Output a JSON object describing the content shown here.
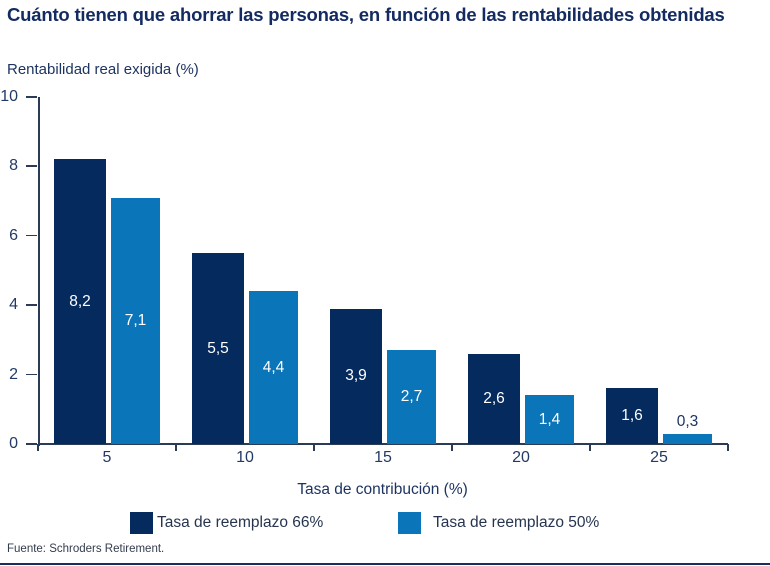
{
  "title": "Cuánto tienen que ahorrar las personas, en función de las rentabilidades obtenidas",
  "chart_data": {
    "type": "bar",
    "title": "Cuánto tienen que ahorrar las personas, en función de las rentabilidades obtenidas",
    "ylabel": "Rentabilidad real exigida (%)",
    "xlabel": "Tasa de contribución (%)",
    "categories": [
      "5",
      "10",
      "15",
      "20",
      "25"
    ],
    "series": [
      {
        "name": "Tasa de reemplazo 66%",
        "color": "#052a5e",
        "values": [
          8.2,
          5.5,
          3.9,
          2.6,
          1.6
        ],
        "value_labels": [
          "8,2",
          "5,5",
          "3,9",
          "2,6",
          "1,6"
        ]
      },
      {
        "name": "Tasa de reemplazo 50%",
        "color": "#0a75b8",
        "values": [
          7.1,
          4.4,
          2.7,
          1.4,
          0.3
        ],
        "value_labels": [
          "7,1",
          "4,4",
          "2,7",
          "1,4",
          "0,3"
        ]
      }
    ],
    "ylim": [
      0,
      10
    ],
    "yticks": [
      "0",
      "2",
      "4",
      "6",
      "8",
      "10"
    ],
    "grid": false,
    "legend_position": "bottom"
  },
  "footer": {
    "source": "Fuente: Schroders Retirement."
  }
}
